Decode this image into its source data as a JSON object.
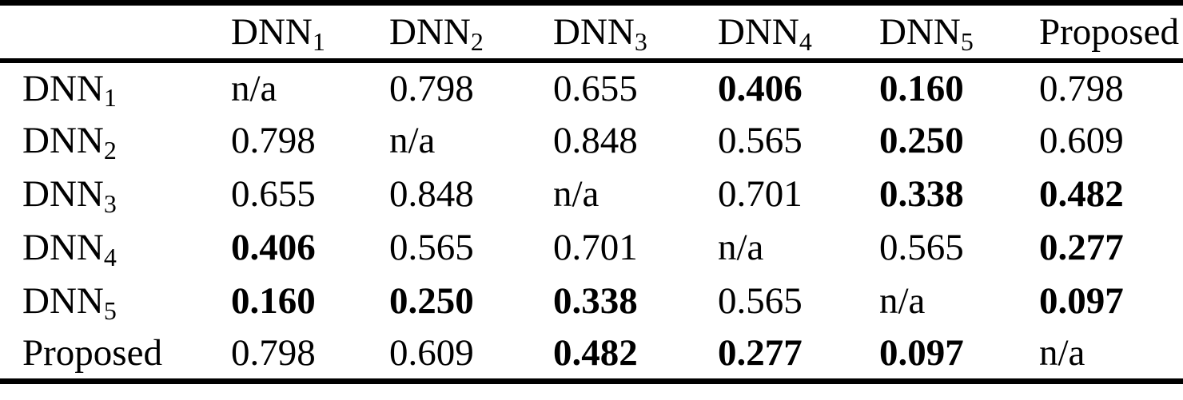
{
  "page": {
    "background": "#ffffff"
  },
  "table": {
    "text_color": "#000000",
    "rule_color": "#000000",
    "na_text": "n/a",
    "header": [
      {
        "text": "",
        "sub": ""
      },
      {
        "text": "DNN",
        "sub": "1"
      },
      {
        "text": "DNN",
        "sub": "2"
      },
      {
        "text": "DNN",
        "sub": "3"
      },
      {
        "text": "DNN",
        "sub": "4"
      },
      {
        "text": "DNN",
        "sub": "5"
      },
      {
        "text": "Proposed",
        "sub": ""
      }
    ],
    "rows": [
      {
        "label": {
          "text": "DNN",
          "sub": "1"
        },
        "cells": [
          {
            "text": "n/a",
            "bold": false
          },
          {
            "text": "0.798",
            "bold": false
          },
          {
            "text": "0.655",
            "bold": false
          },
          {
            "text": "0.406",
            "bold": true
          },
          {
            "text": "0.160",
            "bold": true
          },
          {
            "text": "0.798",
            "bold": false
          }
        ]
      },
      {
        "label": {
          "text": "DNN",
          "sub": "2"
        },
        "cells": [
          {
            "text": "0.798",
            "bold": false
          },
          {
            "text": "n/a",
            "bold": false
          },
          {
            "text": "0.848",
            "bold": false
          },
          {
            "text": "0.565",
            "bold": false
          },
          {
            "text": "0.250",
            "bold": true
          },
          {
            "text": "0.609",
            "bold": false
          }
        ]
      },
      {
        "label": {
          "text": "DNN",
          "sub": "3"
        },
        "cells": [
          {
            "text": "0.655",
            "bold": false
          },
          {
            "text": "0.848",
            "bold": false
          },
          {
            "text": "n/a",
            "bold": false
          },
          {
            "text": "0.701",
            "bold": false
          },
          {
            "text": "0.338",
            "bold": true
          },
          {
            "text": "0.482",
            "bold": true
          }
        ]
      },
      {
        "label": {
          "text": "DNN",
          "sub": "4"
        },
        "cells": [
          {
            "text": "0.406",
            "bold": true
          },
          {
            "text": "0.565",
            "bold": false
          },
          {
            "text": "0.701",
            "bold": false
          },
          {
            "text": "n/a",
            "bold": false
          },
          {
            "text": "0.565",
            "bold": false
          },
          {
            "text": "0.277",
            "bold": true
          }
        ]
      },
      {
        "label": {
          "text": "DNN",
          "sub": "5"
        },
        "cells": [
          {
            "text": "0.160",
            "bold": true
          },
          {
            "text": "0.250",
            "bold": true
          },
          {
            "text": "0.338",
            "bold": true
          },
          {
            "text": "0.565",
            "bold": false
          },
          {
            "text": "n/a",
            "bold": false
          },
          {
            "text": "0.097",
            "bold": true
          }
        ]
      },
      {
        "label": {
          "text": "Proposed",
          "sub": ""
        },
        "cells": [
          {
            "text": "0.798",
            "bold": false
          },
          {
            "text": "0.609",
            "bold": false
          },
          {
            "text": "0.482",
            "bold": true
          },
          {
            "text": "0.277",
            "bold": true
          },
          {
            "text": "0.097",
            "bold": true
          },
          {
            "text": "n/a",
            "bold": false
          }
        ]
      }
    ]
  }
}
